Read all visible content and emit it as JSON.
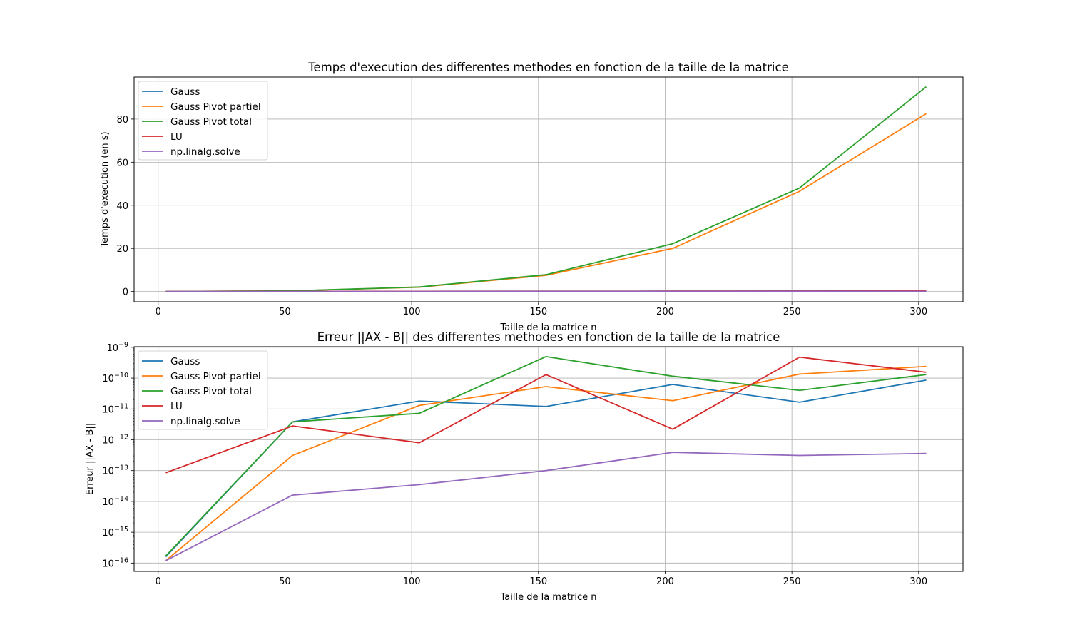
{
  "colors": {
    "Gauss": "#1f77b4",
    "Gauss Pivot partiel": "#ff7f0e",
    "Gauss Pivot total": "#2ca02c",
    "LU": "#d62728",
    "np.linalg.solve": "#9467bd"
  },
  "chart_data": [
    {
      "type": "line",
      "title": "Temps d'execution des differentes methodes en fonction de la taille de la matrice",
      "xlabel": "Taille de la matrice n",
      "ylabel": "Temps d'execution (en s)",
      "xlim": [
        -9.5,
        317.5
      ],
      "ylim": [
        -4.75,
        99.5
      ],
      "xticks": [
        0,
        50,
        100,
        150,
        200,
        250,
        300
      ],
      "yticks": [
        0,
        20,
        40,
        60,
        80
      ],
      "grid": true,
      "yscale": "linear",
      "legend_position": "upper-left",
      "x": [
        3,
        53,
        103,
        153,
        203,
        253,
        303
      ],
      "series": [
        {
          "name": "Gauss",
          "values": [
            0.0,
            0.05,
            0.08,
            0.12,
            0.15,
            0.2,
            0.25
          ]
        },
        {
          "name": "Gauss Pivot partiel",
          "values": [
            0.0,
            0.3,
            2.0,
            7.5,
            20.0,
            46.5,
            82.5
          ]
        },
        {
          "name": "Gauss Pivot total",
          "values": [
            0.0,
            0.3,
            2.1,
            7.8,
            22.2,
            48.0,
            95.0
          ]
        },
        {
          "name": "LU",
          "values": [
            0.0,
            0.05,
            0.1,
            0.12,
            0.15,
            0.2,
            0.25
          ]
        },
        {
          "name": "np.linalg.solve",
          "values": [
            0.0,
            0.01,
            0.02,
            0.03,
            0.05,
            0.07,
            0.1
          ]
        }
      ]
    },
    {
      "type": "line",
      "title": "Erreur ||AX - B|| des differentes methodes en fonction de la taille de la matrice",
      "xlabel": "Taille de la matrice n",
      "ylabel": "Erreur ||AX - B||",
      "xlim": [
        -9.5,
        317.5
      ],
      "ylim_log10": [
        -16.27,
        -8.98
      ],
      "xticks": [
        0,
        50,
        100,
        150,
        200,
        250,
        300
      ],
      "yticks_exponent": [
        -16,
        -15,
        -14,
        -13,
        -12,
        -11,
        -10,
        -9
      ],
      "grid": true,
      "yscale": "log",
      "legend_position": "upper-left",
      "x": [
        3,
        53,
        103,
        153,
        203,
        253,
        303
      ],
      "series": [
        {
          "name": "Gauss",
          "values": [
            1.6e-16,
            3.8e-12,
            1.8e-11,
            1.2e-11,
            6.2e-11,
            1.65e-11,
            8.6e-11
          ]
        },
        {
          "name": "Gauss Pivot partiel",
          "values": [
            1.2e-16,
            3.1e-13,
            1.3e-11,
            5.3e-11,
            1.85e-11,
            1.35e-10,
            2.4e-10
          ]
        },
        {
          "name": "Gauss Pivot total",
          "values": [
            1.7e-16,
            3.8e-12,
            7.2e-12,
            5e-10,
            1.15e-10,
            4e-11,
            1.3e-10
          ]
        },
        {
          "name": "LU",
          "values": [
            8.5e-14,
            2.8e-12,
            8e-13,
            1.3e-10,
            2.2e-12,
            4.8e-10,
            1.55e-10
          ]
        },
        {
          "name": "np.linalg.solve",
          "values": [
            1.2e-16,
            1.6e-14,
            3.5e-14,
            1e-13,
            3.9e-13,
            3.1e-13,
            3.6e-13
          ]
        }
      ]
    }
  ]
}
